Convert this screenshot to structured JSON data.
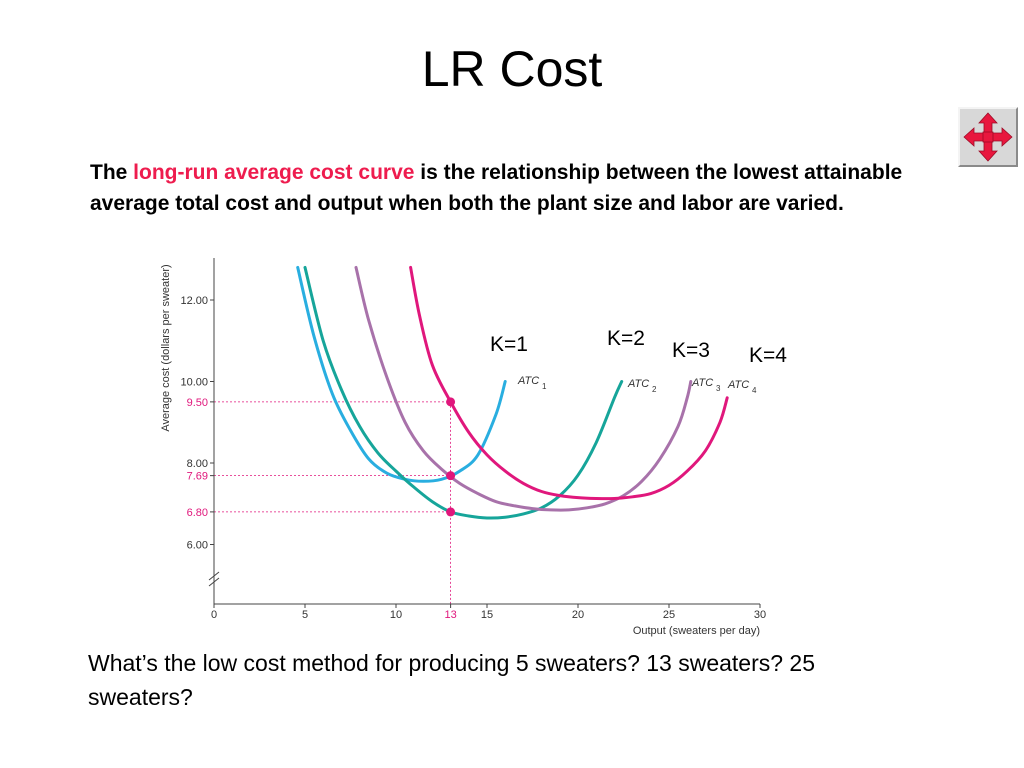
{
  "slide": {
    "title": "LR Cost",
    "intro": {
      "before": "The ",
      "highlight": "long-run average cost curve",
      "after": " is the relationship between the lowest attainable average total cost and output when both the plant size and labor are varied."
    },
    "question": "What’s the low cost method for producing 5 sweaters? 13 sweaters? 25 sweaters?",
    "nav_icon": "four-way-arrow-icon",
    "colors": {
      "highlight": "#ee1c4e",
      "atc1": "#29aee0",
      "atc2": "#16a59a",
      "atc3": "#a872aa",
      "atc4": "#e0177c",
      "guide": "#e0177c",
      "nav_icon": "#e8173e"
    }
  },
  "chart_data": {
    "type": "line",
    "ylabel": "Average cost (dollars per sweater)",
    "xlabel": "Output (sweaters per day)",
    "xlim": [
      0,
      30
    ],
    "ylim": [
      5.4,
      13
    ],
    "axis_break": true,
    "x_ticks": [
      {
        "value": 0,
        "label": "0"
      },
      {
        "value": 5,
        "label": "5"
      },
      {
        "value": 10,
        "label": "10"
      },
      {
        "value": 13,
        "label": "13",
        "highlight": true
      },
      {
        "value": 15,
        "label": "15"
      },
      {
        "value": 20,
        "label": "20"
      },
      {
        "value": 25,
        "label": "25"
      },
      {
        "value": 30,
        "label": "30"
      }
    ],
    "y_ticks": [
      {
        "value": 12.0,
        "label": "12.00"
      },
      {
        "value": 10.0,
        "label": "10.00"
      },
      {
        "value": 9.5,
        "label": "9.50",
        "highlight": true
      },
      {
        "value": 8.0,
        "label": "8.00"
      },
      {
        "value": 7.69,
        "label": "7.69",
        "highlight": true
      },
      {
        "value": 6.8,
        "label": "6.80",
        "highlight": true
      },
      {
        "value": 6.0,
        "label": "6.00"
      }
    ],
    "series": [
      {
        "name": "ATC",
        "subscript": "1",
        "k_label": "K=1",
        "color_key": "atc1",
        "points": [
          [
            4.6,
            12.8
          ],
          [
            5.5,
            11.1
          ],
          [
            6.5,
            9.7
          ],
          [
            7.5,
            8.8
          ],
          [
            8.5,
            8.1
          ],
          [
            9.5,
            7.75
          ],
          [
            10.5,
            7.6
          ],
          [
            11.5,
            7.55
          ],
          [
            12.5,
            7.6
          ],
          [
            13.5,
            7.8
          ],
          [
            14.5,
            8.2
          ],
          [
            15.5,
            9.2
          ],
          [
            16.0,
            10.0
          ]
        ]
      },
      {
        "name": "ATC",
        "subscript": "2",
        "k_label": "K=2",
        "color_key": "atc2",
        "points": [
          [
            5.0,
            12.8
          ],
          [
            6.0,
            11.0
          ],
          [
            7.0,
            9.8
          ],
          [
            8.0,
            8.9
          ],
          [
            9.0,
            8.25
          ],
          [
            10.0,
            7.8
          ],
          [
            11.0,
            7.4
          ],
          [
            12.0,
            7.05
          ],
          [
            13.0,
            6.8
          ],
          [
            14.0,
            6.7
          ],
          [
            15.0,
            6.65
          ],
          [
            16.0,
            6.67
          ],
          [
            17.0,
            6.75
          ],
          [
            18.0,
            6.9
          ],
          [
            19.0,
            7.2
          ],
          [
            20.0,
            7.7
          ],
          [
            21.0,
            8.5
          ],
          [
            22.0,
            9.6
          ],
          [
            22.4,
            10.0
          ]
        ]
      },
      {
        "name": "ATC",
        "subscript": "3",
        "k_label": "K=3",
        "color_key": "atc3",
        "points": [
          [
            7.8,
            12.8
          ],
          [
            8.5,
            11.5
          ],
          [
            9.5,
            10.1
          ],
          [
            10.5,
            9.0
          ],
          [
            11.5,
            8.3
          ],
          [
            12.5,
            7.85
          ],
          [
            13.5,
            7.5
          ],
          [
            14.5,
            7.25
          ],
          [
            15.5,
            7.05
          ],
          [
            16.5,
            6.95
          ],
          [
            17.5,
            6.88
          ],
          [
            18.5,
            6.85
          ],
          [
            19.5,
            6.85
          ],
          [
            20.5,
            6.9
          ],
          [
            21.5,
            7.0
          ],
          [
            22.5,
            7.2
          ],
          [
            23.5,
            7.55
          ],
          [
            24.5,
            8.1
          ],
          [
            25.5,
            8.9
          ],
          [
            26.0,
            9.6
          ],
          [
            26.2,
            10.0
          ]
        ]
      },
      {
        "name": "ATC",
        "subscript": "4",
        "k_label": "K=4",
        "color_key": "atc4",
        "points": [
          [
            10.8,
            12.8
          ],
          [
            11.3,
            11.6
          ],
          [
            12.0,
            10.4
          ],
          [
            13.0,
            9.5
          ],
          [
            14.0,
            8.75
          ],
          [
            15.0,
            8.2
          ],
          [
            16.0,
            7.8
          ],
          [
            17.0,
            7.5
          ],
          [
            18.0,
            7.3
          ],
          [
            19.0,
            7.2
          ],
          [
            20.0,
            7.15
          ],
          [
            21.0,
            7.13
          ],
          [
            22.0,
            7.13
          ],
          [
            23.0,
            7.17
          ],
          [
            24.0,
            7.25
          ],
          [
            25.0,
            7.45
          ],
          [
            26.0,
            7.8
          ],
          [
            27.0,
            8.3
          ],
          [
            27.8,
            9.0
          ],
          [
            28.2,
            9.6
          ]
        ]
      }
    ],
    "highlight_points": [
      {
        "x": 13,
        "y": 9.5
      },
      {
        "x": 13,
        "y": 7.69
      },
      {
        "x": 13,
        "y": 6.8
      }
    ]
  }
}
